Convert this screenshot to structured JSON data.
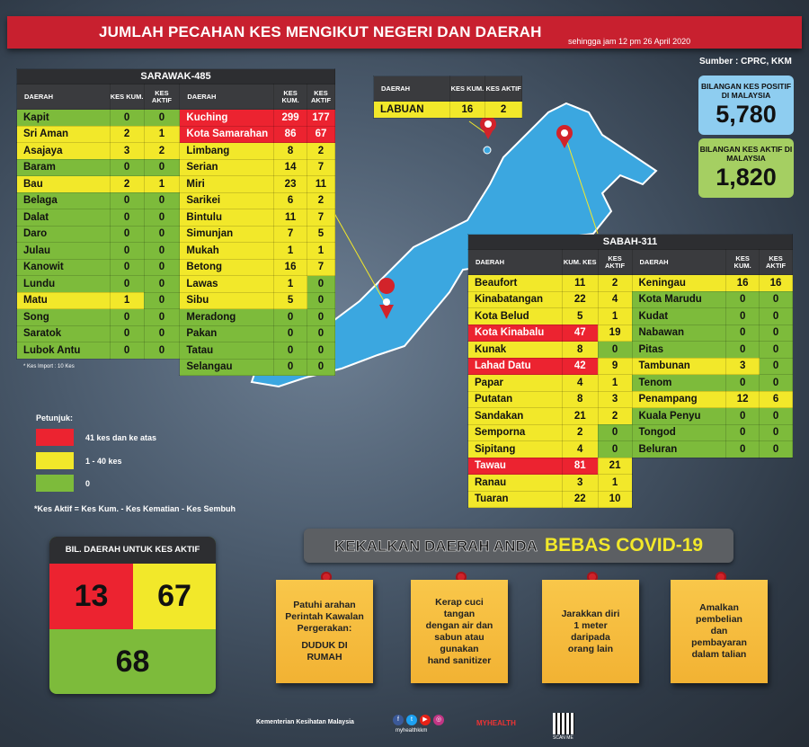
{
  "header": {
    "title": "JUMLAH PECAHAN KES MENGIKUT NEGERI DAN DAERAH",
    "subtitle": "sehingga jam 12 pm 26 April 2020",
    "source": "Sumber : CPRC, KKM"
  },
  "stats": {
    "positive": {
      "label": "BILANGAN KES POSITIF DI MALAYSIA",
      "value": "5,780",
      "color": "#8ecdf0"
    },
    "active": {
      "label": "BILANGAN KES AKTIF DI MALAYSIA",
      "value": "1,820",
      "color": "#a5cf62"
    }
  },
  "colors": {
    "red": "#ec2330",
    "yellow": "#f2e82a",
    "green": "#7dbb3b",
    "map": "#3ba7e0",
    "banner": "#c8202f"
  },
  "labuan": {
    "headers": [
      "DAERAH",
      "KES KUM.",
      "KES AKTIF"
    ],
    "rows": [
      [
        "LABUAN",
        16,
        2
      ]
    ]
  },
  "sarawak": {
    "title": "SARAWAK-485",
    "headers": [
      "DAERAH",
      "KES KUM.",
      "KES AKTIF"
    ],
    "left": [
      [
        "Kapit",
        0,
        0
      ],
      [
        "Sri Aman",
        2,
        1
      ],
      [
        "Asajaya",
        3,
        2
      ],
      [
        "Baram",
        0,
        0
      ],
      [
        "Bau",
        2,
        1
      ],
      [
        "Belaga",
        0,
        0
      ],
      [
        "Dalat",
        0,
        0
      ],
      [
        "Daro",
        0,
        0
      ],
      [
        "Julau",
        0,
        0
      ],
      [
        "Kanowit",
        0,
        0
      ],
      [
        "Lundu",
        0,
        0
      ],
      [
        "Matu",
        1,
        0
      ],
      [
        "Song",
        0,
        0
      ],
      [
        "Saratok",
        0,
        0
      ],
      [
        "Lubok Antu",
        0,
        0
      ]
    ],
    "right": [
      [
        "Kuching",
        299,
        177
      ],
      [
        "Kota Samarahan",
        86,
        67
      ],
      [
        "Limbang",
        8,
        2
      ],
      [
        "Serian",
        14,
        7
      ],
      [
        "Miri",
        23,
        11
      ],
      [
        "Sarikei",
        6,
        2
      ],
      [
        "Bintulu",
        11,
        7
      ],
      [
        "Simunjan",
        7,
        5
      ],
      [
        "Mukah",
        1,
        1
      ],
      [
        "Betong",
        16,
        7
      ],
      [
        "Lawas",
        1,
        0
      ],
      [
        "Sibu",
        5,
        0
      ],
      [
        "Meradong",
        0,
        0
      ],
      [
        "Pakan",
        0,
        0
      ],
      [
        "Tatau",
        0,
        0
      ],
      [
        "Selangau",
        0,
        0
      ]
    ],
    "import_note": "* Kes Import : 10 Kes"
  },
  "sabah": {
    "title": "SABAH-311",
    "headers_left": [
      "DAERAH",
      "KUM. KES",
      "KES AKTIF"
    ],
    "headers_right": [
      "DAERAH",
      "KES KUM.",
      "KES AKTIF"
    ],
    "left": [
      [
        "Beaufort",
        11,
        2
      ],
      [
        "Kinabatangan",
        22,
        4
      ],
      [
        "Kota Belud",
        5,
        1
      ],
      [
        "Kota Kinabalu",
        47,
        19
      ],
      [
        "Kunak",
        8,
        0
      ],
      [
        "Lahad Datu",
        42,
        9
      ],
      [
        "Papar",
        4,
        1
      ],
      [
        "Putatan",
        8,
        3
      ],
      [
        "Sandakan",
        21,
        2
      ],
      [
        "Semporna",
        2,
        0
      ],
      [
        "Sipitang",
        4,
        0
      ],
      [
        "Tawau",
        81,
        21
      ],
      [
        "Ranau",
        3,
        1
      ],
      [
        "Tuaran",
        22,
        10
      ]
    ],
    "right": [
      [
        "Keningau",
        16,
        16
      ],
      [
        "Kota Marudu",
        0,
        0
      ],
      [
        "Kudat",
        0,
        0
      ],
      [
        "Nabawan",
        0,
        0
      ],
      [
        "Pitas",
        0,
        0
      ],
      [
        "Tambunan",
        3,
        0
      ],
      [
        "Tenom",
        0,
        0
      ],
      [
        "Penampang",
        12,
        6
      ],
      [
        "Kuala Penyu",
        0,
        0
      ],
      [
        "Tongod",
        0,
        0
      ],
      [
        "Beluran",
        0,
        0
      ]
    ]
  },
  "legend": {
    "title": "Petunjuk:",
    "items": [
      "41 kes dan ke atas",
      "1 - 40 kes",
      "0"
    ],
    "formula": "*Kes Aktif = Kes Kum. - Kes Kematian - Kes Sembuh"
  },
  "district_count": {
    "title": "BIL. DAERAH UNTUK KES AKTIF",
    "red": "13",
    "yellow": "67",
    "green": "68"
  },
  "slogan": {
    "part1": "KEKALKAN DAERAH ANDA",
    "part2": "BEBAS COVID-19"
  },
  "notes": [
    [
      "Patuhi arahan",
      "Perintah Kawalan",
      "Pergerakan:",
      "",
      "DUDUK DI",
      "RUMAH"
    ],
    [
      "Kerap cuci",
      "tangan",
      "dengan air dan",
      "sabun atau",
      "gunakan",
      "hand sanitizer"
    ],
    [
      "Jarakkan diri",
      "1 meter",
      "daripada",
      "orang lain"
    ],
    [
      "Amalkan",
      "pembelian",
      "dan",
      "pembayaran",
      "dalam talian"
    ]
  ],
  "footer": {
    "ministry": "Kementerian Kesihatan Malaysia",
    "social": "myhealthkkm",
    "logo": "MYHEALTH",
    "qr_label": "SCAN ME"
  }
}
